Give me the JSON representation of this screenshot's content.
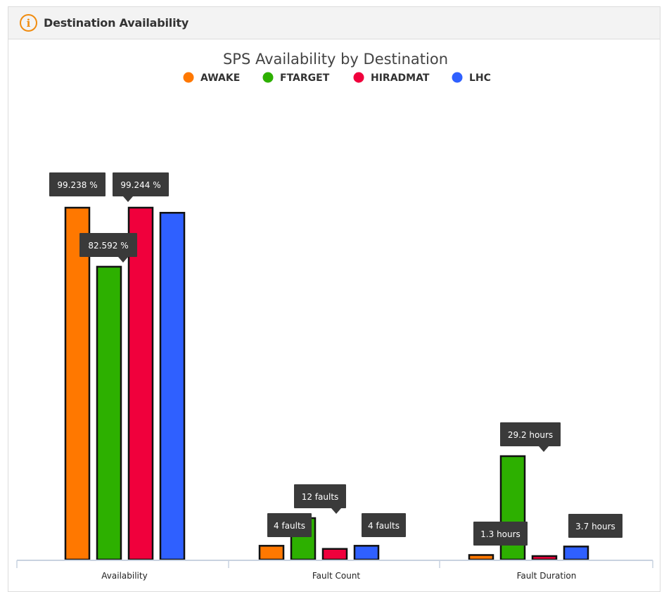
{
  "panel": {
    "title": "Destination Availability",
    "icon": "info-icon"
  },
  "chart_data": {
    "type": "bar",
    "title": "SPS Availability by Destination",
    "categories": [
      "Availability",
      "Fault Count",
      "Fault Duration"
    ],
    "legend_position": "top-center",
    "grid": false,
    "series": [
      {
        "name": "AWAKE",
        "color": "#ff7800",
        "values": [
          99.238,
          4,
          1.3
        ],
        "labels": [
          "99.238 %",
          "4 faults",
          "1.3 hours"
        ]
      },
      {
        "name": "FTARGET",
        "color": "#2db000",
        "values": [
          82.592,
          12,
          29.2
        ],
        "labels": [
          "82.592 %",
          "12 faults",
          "29.2 hours"
        ]
      },
      {
        "name": "HIRADMAT",
        "color": "#f0003c",
        "values": [
          99.244,
          3.1,
          1.0
        ],
        "labels": [
          "99.244 %",
          "",
          ""
        ]
      },
      {
        "name": "LHC",
        "color": "#2f60ff",
        "values": [
          97.8,
          4,
          3.7
        ],
        "labels": [
          "",
          "4 faults",
          "3.7 hours"
        ]
      }
    ]
  }
}
